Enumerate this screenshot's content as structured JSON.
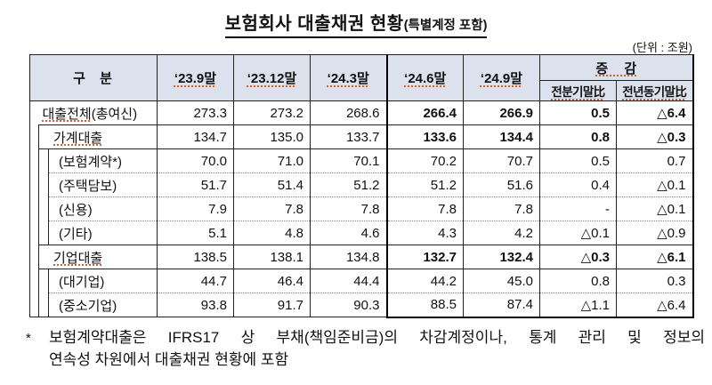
{
  "title": {
    "main": "보험회사 대출채권 현황",
    "paren": "(특별계정 포함)"
  },
  "unit_label": "(단위 : 조원)",
  "table": {
    "header": {
      "col_group": "구 분",
      "periods": [
        "‘23.9말",
        "‘23.12말",
        "‘24.3말",
        "‘24.6말",
        "‘24.9말"
      ],
      "change_group": "증 감",
      "change_cols": [
        "전분기말比",
        "전년동기말比"
      ]
    },
    "rows": [
      {
        "label": "대출전체",
        "label_suffix": "(총여신)",
        "values": [
          "273.3",
          "273.2",
          "268.6",
          "266.4",
          "266.9",
          "0.5",
          "△6.4"
        ]
      },
      {
        "label": "가계대출",
        "label_suffix": "",
        "values": [
          "134.7",
          "135.0",
          "133.7",
          "133.6",
          "134.4",
          "0.8",
          "△0.3"
        ]
      },
      {
        "label": "(보험계약*)",
        "label_suffix": "",
        "values": [
          "70.0",
          "71.0",
          "70.1",
          "70.2",
          "70.7",
          "0.5",
          "0.7"
        ]
      },
      {
        "label": "(주택담보)",
        "label_suffix": "",
        "values": [
          "51.7",
          "51.4",
          "51.2",
          "51.2",
          "51.6",
          "0.4",
          "△0.1"
        ]
      },
      {
        "label": "(신용)",
        "label_suffix": "",
        "values": [
          "7.9",
          "7.8",
          "7.8",
          "7.8",
          "7.8",
          "-",
          "△0.1"
        ]
      },
      {
        "label": "(기타)",
        "label_suffix": "",
        "values": [
          "5.1",
          "4.8",
          "4.6",
          "4.3",
          "4.2",
          "△0.1",
          "△0.9"
        ]
      },
      {
        "label": "기업대출",
        "label_suffix": "",
        "values": [
          "138.5",
          "138.1",
          "134.8",
          "132.7",
          "132.4",
          "△0.3",
          "△6.1"
        ]
      },
      {
        "label": "(대기업)",
        "label_suffix": "",
        "values": [
          "44.7",
          "46.4",
          "44.4",
          "44.2",
          "45.0",
          "0.8",
          "0.3"
        ]
      },
      {
        "label": "(중소기업)",
        "label_suffix": "",
        "values": [
          "93.8",
          "91.7",
          "90.3",
          "88.5",
          "87.4",
          "△1.1",
          "△6.4"
        ]
      }
    ]
  },
  "footnote": {
    "marker": "*",
    "line1": "보험계약대출은 IFRS17 상 부채(책임준비금)의 차감계정이나, 통계 관리 및 정보의",
    "line2": "연속성 차원에서 대출채권 현황에 포함"
  }
}
